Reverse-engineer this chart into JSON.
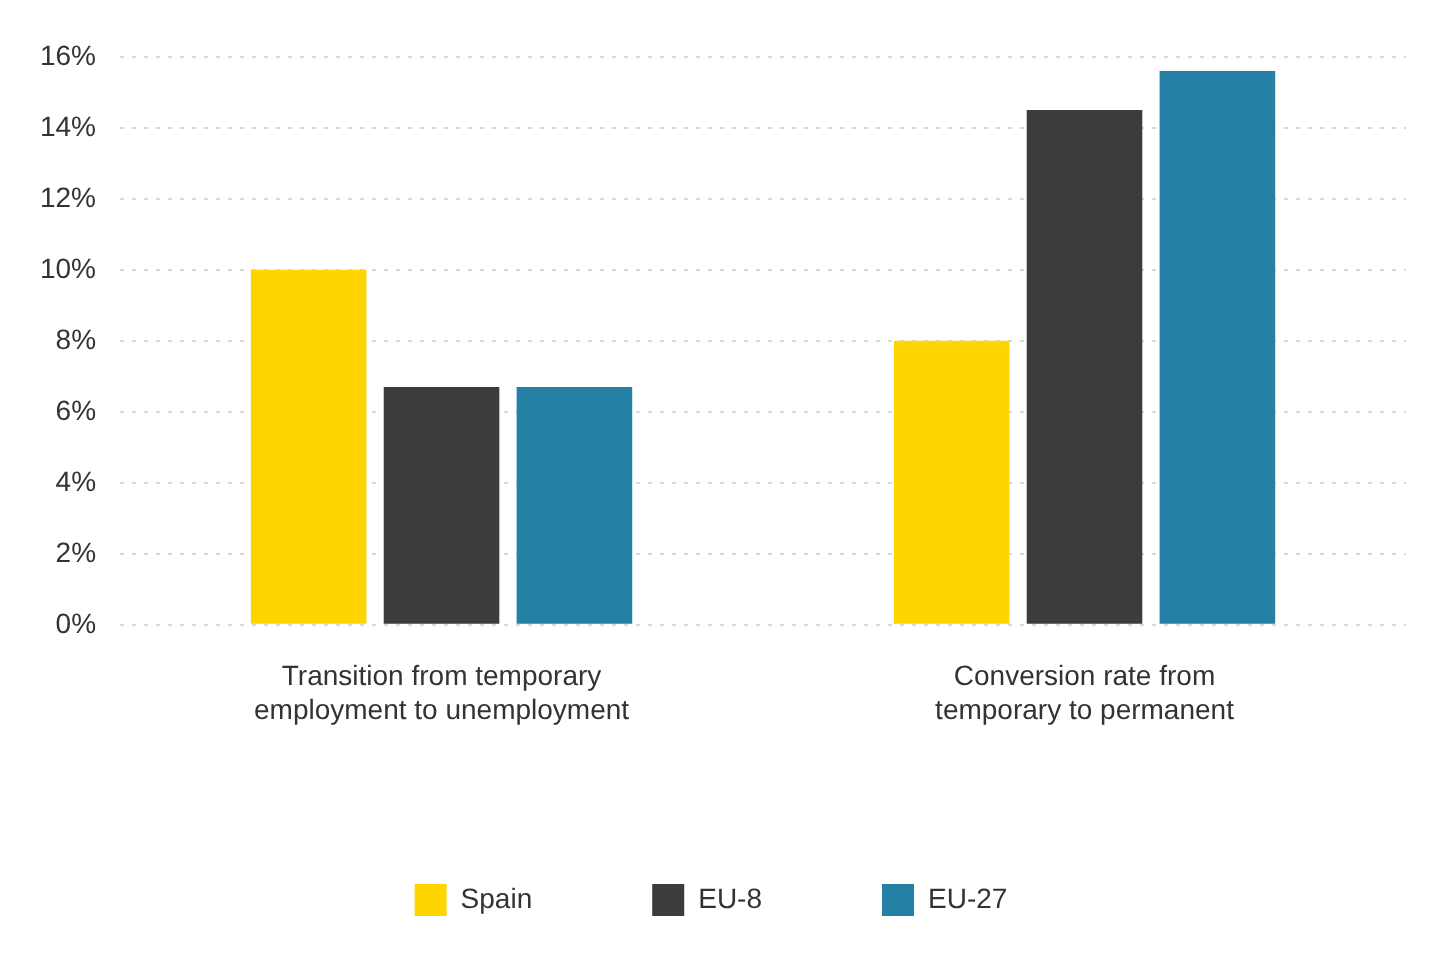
{
  "chart_data": {
    "type": "bar",
    "categories": [
      "Transition from temporary employment to unemployment",
      "Conversion rate from temporary to permanent"
    ],
    "series": [
      {
        "name": "Spain",
        "color": "#ffd500",
        "values": [
          10.0,
          8.0
        ]
      },
      {
        "name": "EU-8",
        "color": "#3c3c3b",
        "values": [
          6.7,
          14.5
        ]
      },
      {
        "name": "EU-27",
        "color": "#2580a6",
        "values": [
          6.7,
          15.6
        ]
      }
    ],
    "ylim": [
      0,
      16
    ],
    "yticks": [
      {
        "value": 0,
        "label": "0%"
      },
      {
        "value": 2,
        "label": "2%"
      },
      {
        "value": 4,
        "label": "4%"
      },
      {
        "value": 6,
        "label": "6%"
      },
      {
        "value": 8,
        "label": "8%"
      },
      {
        "value": 10,
        "label": "10%"
      },
      {
        "value": 12,
        "label": "12%"
      },
      {
        "value": 14,
        "label": "14%"
      },
      {
        "value": 16,
        "label": "16%"
      }
    ],
    "grid": "y",
    "legend": "bottom"
  }
}
